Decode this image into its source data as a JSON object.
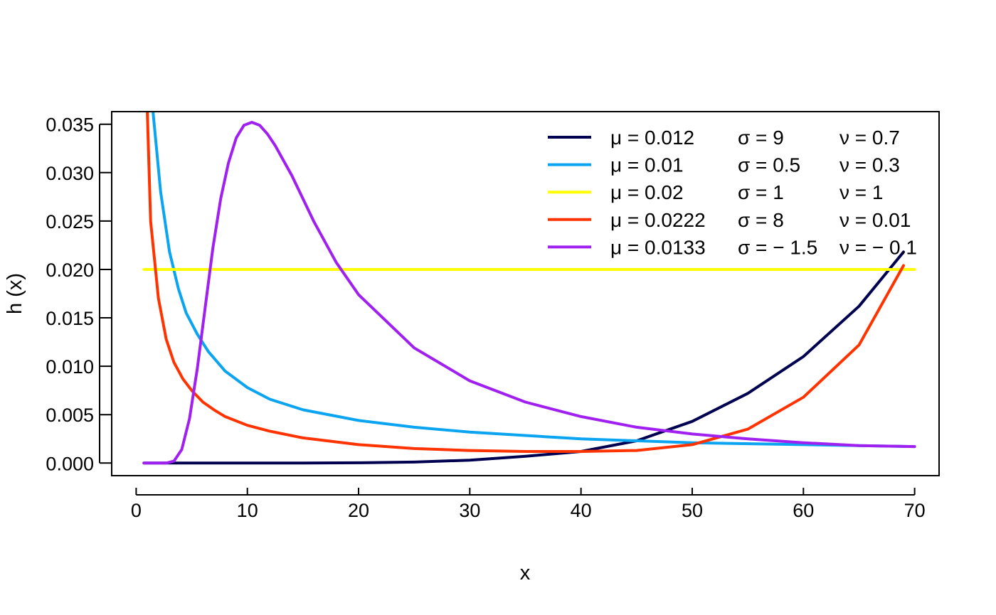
{
  "chart_data": {
    "type": "line",
    "title": "",
    "xlabel": "x",
    "ylabel": "h (x)",
    "xlim": [
      -2.2,
      72.2
    ],
    "ylim": [
      -0.0013,
      0.0363
    ],
    "x_ticks": [
      0,
      10,
      20,
      30,
      40,
      50,
      60,
      70
    ],
    "x_tick_labels": [
      "0",
      "10",
      "20",
      "30",
      "40",
      "50",
      "60",
      "70"
    ],
    "y_ticks": [
      0.0,
      0.005,
      0.01,
      0.015,
      0.02,
      0.025,
      0.03,
      0.035
    ],
    "y_tick_labels": [
      "0.000",
      "0.005",
      "0.010",
      "0.015",
      "0.020",
      "0.025",
      "0.030",
      "0.035"
    ],
    "grid": false,
    "legend_position": "top-right",
    "series": [
      {
        "color": "#000050",
        "legend": {
          "mu": "μ = 0.012",
          "sigma": "σ = 9",
          "nu": "ν = 0.7"
        },
        "x": [
          0.7,
          5,
          10,
          15,
          20,
          25,
          30,
          35,
          40,
          45,
          50,
          55,
          60,
          65,
          69
        ],
        "y": [
          0.0,
          0.0,
          0.0,
          0.0,
          3e-05,
          0.0001,
          0.0003,
          0.0007,
          0.0012,
          0.0023,
          0.0043,
          0.0072,
          0.011,
          0.0162,
          0.0218
        ]
      },
      {
        "color": "#0AA4F0",
        "legend": {
          "mu": "μ = 0.01",
          "sigma": "σ = 0.5",
          "nu": "ν = 0.3"
        },
        "x": [
          1.5,
          2.2,
          3,
          3.8,
          4.5,
          5.5,
          6.5,
          8,
          10,
          12,
          15,
          20,
          25,
          30,
          40,
          50,
          60,
          70
        ],
        "y": [
          0.0365,
          0.028,
          0.0218,
          0.018,
          0.0155,
          0.0133,
          0.0115,
          0.0095,
          0.0078,
          0.0066,
          0.0055,
          0.0044,
          0.0037,
          0.0032,
          0.0025,
          0.0021,
          0.0019,
          0.0017
        ]
      },
      {
        "color": "#FFFF00",
        "legend": {
          "mu": "μ = 0.02",
          "sigma": "σ = 1",
          "nu": "ν = 1"
        },
        "x": [
          0.7,
          70
        ],
        "y": [
          0.02,
          0.02
        ]
      },
      {
        "color": "#FF3300",
        "legend": {
          "mu": "μ = 0.0222",
          "sigma": "σ = 8",
          "nu": "ν = 0.01"
        },
        "x": [
          1.0,
          1.3,
          2.0,
          2.7,
          3.4,
          4.2,
          5,
          6,
          7,
          8,
          10,
          12,
          15,
          20,
          25,
          30,
          35,
          40,
          45,
          50,
          55,
          60,
          65,
          69
        ],
        "y": [
          0.0365,
          0.025,
          0.017,
          0.0128,
          0.0104,
          0.0087,
          0.0075,
          0.0063,
          0.0055,
          0.0048,
          0.0039,
          0.0033,
          0.0026,
          0.0019,
          0.0015,
          0.0013,
          0.0012,
          0.0012,
          0.0013,
          0.0019,
          0.0035,
          0.0068,
          0.0122,
          0.0204
        ]
      },
      {
        "color": "#A020F0",
        "legend": {
          "mu": "μ = 0.0133",
          "sigma": "σ = − 1.5",
          "nu": "ν = − 0.1"
        },
        "x": [
          0.7,
          2.7,
          3.4,
          4.1,
          4.8,
          5.5,
          6.2,
          6.9,
          7.6,
          8.3,
          9.0,
          9.7,
          10.4,
          11.1,
          11.8,
          12.5,
          14,
          16,
          18,
          20,
          25,
          30,
          35,
          40,
          45,
          50,
          55,
          60,
          65,
          70
        ],
        "y": [
          0.0,
          0.0,
          0.0002,
          0.0014,
          0.0046,
          0.0098,
          0.016,
          0.0222,
          0.0273,
          0.031,
          0.0336,
          0.0349,
          0.0352,
          0.0349,
          0.034,
          0.0328,
          0.0297,
          0.0249,
          0.0207,
          0.0174,
          0.0119,
          0.0085,
          0.0063,
          0.0048,
          0.0037,
          0.003,
          0.0025,
          0.0021,
          0.0018,
          0.0017
        ]
      }
    ]
  }
}
